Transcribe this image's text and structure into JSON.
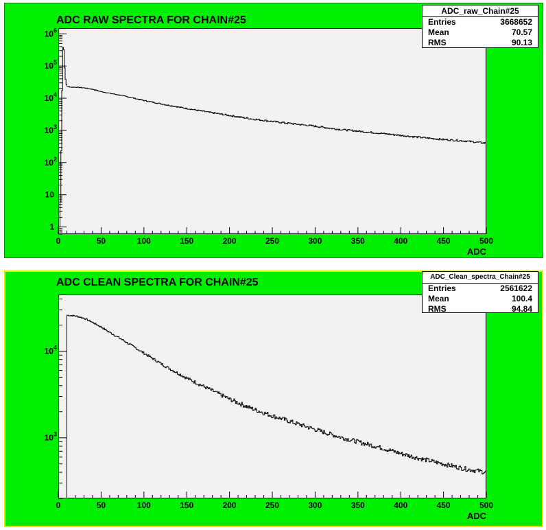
{
  "chart_data": [
    {
      "type": "histogram",
      "title": "ADC RAW SPECTRA FOR CHAIN#25",
      "xlabel": "ADC",
      "ylabel": "",
      "xlim": [
        0,
        500
      ],
      "ylim": [
        0.6,
        1500000
      ],
      "y_scale": "log",
      "x_ticks": [
        "0",
        "50",
        "100",
        "150",
        "200",
        "250",
        "300",
        "350",
        "400",
        "450",
        "500"
      ],
      "y_ticks": [
        {
          "base": "1",
          "exp": ""
        },
        {
          "base": "10",
          "exp": ""
        },
        {
          "base": "10",
          "exp": "2"
        },
        {
          "base": "10",
          "exp": "3"
        },
        {
          "base": "10",
          "exp": "4"
        },
        {
          "base": "10",
          "exp": "5"
        },
        {
          "base": "10",
          "exp": "6"
        }
      ],
      "series": [
        {
          "x": [
            0,
            2,
            4,
            5,
            6,
            7,
            8,
            9,
            10,
            12,
            15,
            20,
            30,
            40,
            50,
            75,
            100,
            125,
            150,
            175,
            200,
            225,
            250,
            275,
            300,
            325,
            350,
            375,
            400,
            425,
            450,
            475,
            500
          ],
          "y": [
            1,
            1,
            1500,
            200000,
            700000,
            150000,
            50000,
            30000,
            24000,
            23000,
            22000,
            22000,
            21000,
            19000,
            16000,
            12000,
            8500,
            6300,
            4800,
            3700,
            2900,
            2300,
            1900,
            1600,
            1350,
            1100,
            950,
            820,
            700,
            600,
            520,
            470,
            400
          ]
        }
      ],
      "stats": {
        "name": "ADC_raw_Chain#25",
        "rows": [
          {
            "label": "Entries",
            "value": "3668652"
          },
          {
            "label": "Mean",
            "value": "70.57"
          },
          {
            "label": "RMS",
            "value": "90.13"
          }
        ]
      },
      "fill_color": "#00ee00",
      "frame_color": "#f2f2f2"
    },
    {
      "type": "histogram",
      "title": "ADC CLEAN SPECTRA FOR CHAIN#25",
      "xlabel": "ADC",
      "ylabel": "",
      "xlim": [
        0,
        500
      ],
      "ylim": [
        200,
        45000
      ],
      "y_scale": "log",
      "x_ticks": [
        "0",
        "50",
        "100",
        "150",
        "200",
        "250",
        "300",
        "350",
        "400",
        "450",
        "500"
      ],
      "y_ticks": [
        {
          "base": "10",
          "exp": "3"
        },
        {
          "base": "10",
          "exp": "4"
        }
      ],
      "series": [
        {
          "x": [
            10,
            20,
            30,
            40,
            50,
            60,
            75,
            100,
            125,
            150,
            175,
            200,
            225,
            250,
            275,
            300,
            325,
            350,
            375,
            400,
            425,
            450,
            475,
            500
          ],
          "y": [
            26000,
            25500,
            24000,
            21500,
            19000,
            16500,
            13500,
            9500,
            6700,
            4900,
            3700,
            2800,
            2200,
            1800,
            1500,
            1250,
            1050,
            900,
            780,
            660,
            570,
            500,
            440,
            400
          ]
        }
      ],
      "stats": {
        "name": "ADC_Clean_spectra_Chain#25",
        "rows": [
          {
            "label": "Entries",
            "value": "2561622"
          },
          {
            "label": "Mean",
            "value": "100.4"
          },
          {
            "label": "RMS",
            "value": "94.84"
          }
        ]
      },
      "fill_color": "#00ee00",
      "frame_color": "#f2f2f2"
    }
  ]
}
